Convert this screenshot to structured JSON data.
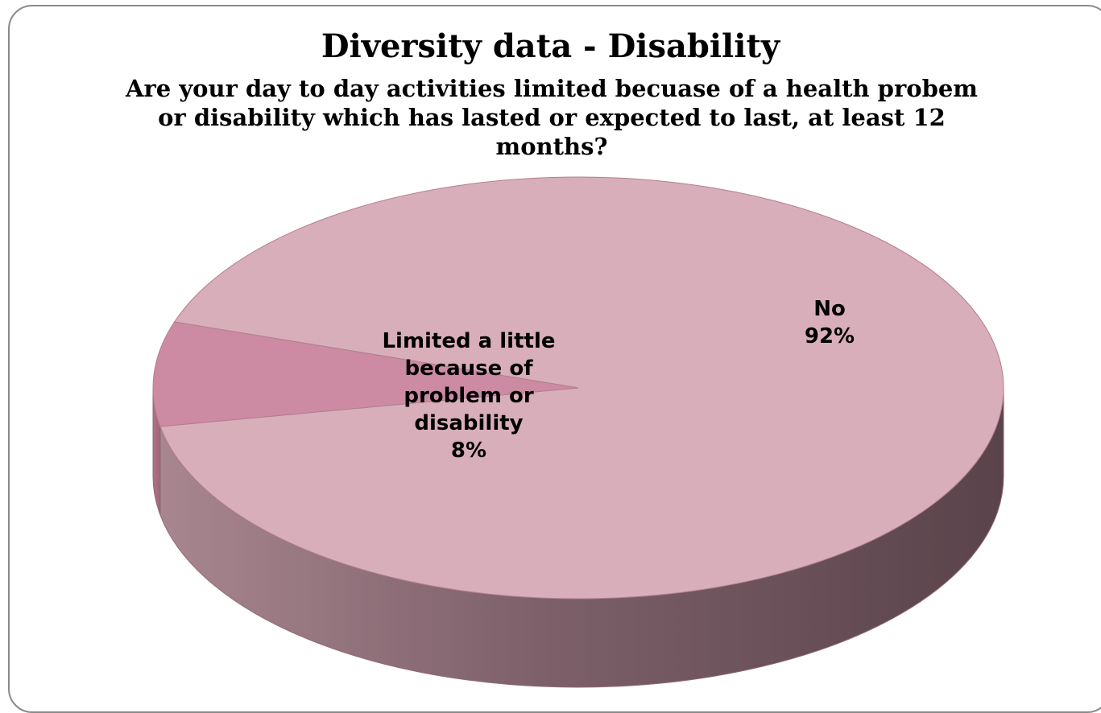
{
  "chart_data": {
    "type": "pie",
    "style": "3d-exploded-none",
    "title": "Diversity data - Disability",
    "subtitle": "Are your day to day activities limited becuase of a health probem or disability which has lasted or expected to last, at least 12 months?",
    "slices": [
      {
        "label_lines": [
          "No",
          "92%"
        ],
        "label": "No",
        "value": 92,
        "display": "92%",
        "color_top": "#d9aebb",
        "color_side": "#6e5058"
      },
      {
        "label_lines": [
          "Limited a little",
          "because of",
          "problem or",
          "disability",
          "8%"
        ],
        "label": "Limited a little because of problem or disability",
        "value": 8,
        "display": "8%",
        "color_top": "#cc8ba3",
        "color_side": "#a87080"
      }
    ],
    "legend": "none",
    "data_labels": "inside"
  }
}
